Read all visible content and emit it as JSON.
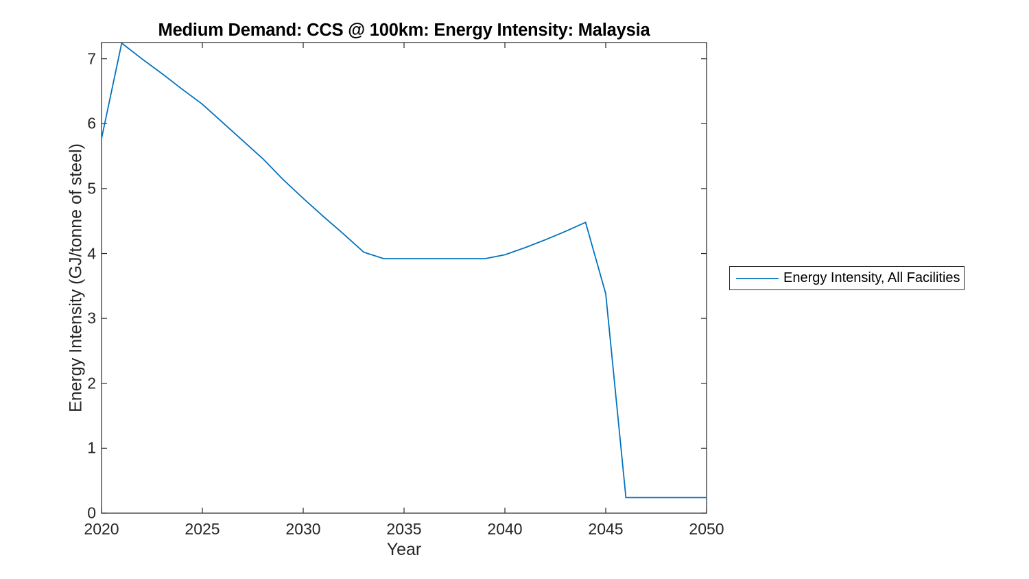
{
  "chart_data": {
    "type": "line",
    "title": "Medium Demand: CCS @ 100km: Energy Intensity: Malaysia",
    "xlabel": "Year",
    "ylabel": "Energy Intensity (GJ/tonne of steel)",
    "xlim": [
      2020,
      2050
    ],
    "ylim": [
      0,
      7.25
    ],
    "xticks": [
      2020,
      2025,
      2030,
      2035,
      2040,
      2045,
      2050
    ],
    "yticks": [
      0,
      1,
      2,
      3,
      4,
      5,
      6,
      7
    ],
    "grid": false,
    "axis_color": "#262626",
    "legend": {
      "position": "right-outside",
      "entries": [
        "Energy Intensity, All Facilities"
      ]
    },
    "series": [
      {
        "name": "Energy Intensity, All Facilities",
        "color": "#0072BD",
        "x": [
          2020,
          2021,
          2022,
          2023,
          2024,
          2025,
          2026,
          2027,
          2028,
          2029,
          2030,
          2031,
          2032,
          2033,
          2034,
          2035,
          2036,
          2037,
          2038,
          2039,
          2040,
          2041,
          2042,
          2043,
          2044,
          2045,
          2046,
          2047,
          2048,
          2049,
          2050
        ],
        "y": [
          5.77,
          7.24,
          7.0,
          6.77,
          6.53,
          6.3,
          6.02,
          5.74,
          5.46,
          5.14,
          4.85,
          4.57,
          4.3,
          4.02,
          3.92,
          3.92,
          3.92,
          3.92,
          3.92,
          3.92,
          3.98,
          4.09,
          4.21,
          4.34,
          4.48,
          3.38,
          0.24,
          0.24,
          0.24,
          0.24,
          0.24
        ]
      }
    ]
  }
}
